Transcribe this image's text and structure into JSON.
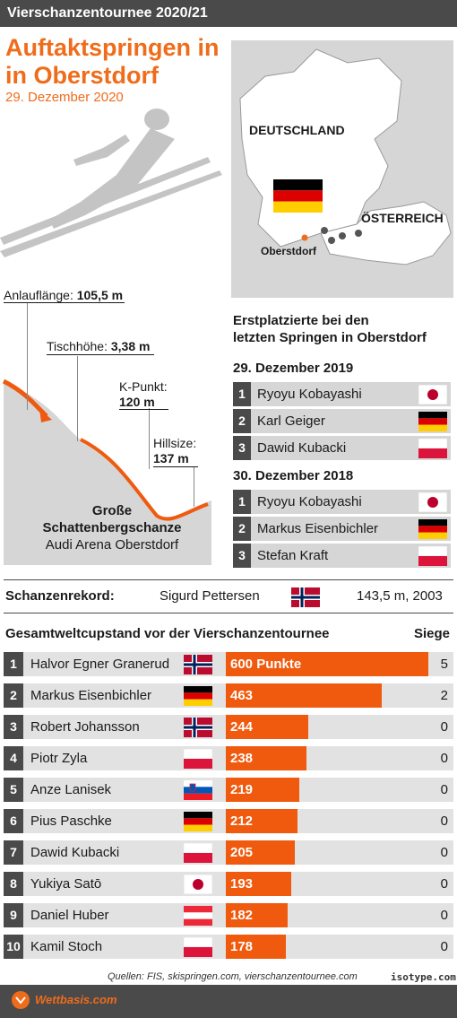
{
  "header": {
    "title": "Vierschanzentournee 2020/21"
  },
  "headline": {
    "line1": "Auftaktspringen in",
    "line2": "in Oberstdorf",
    "date": "29. Dezember 2020"
  },
  "map": {
    "country_de": "DEUTSCHLAND",
    "country_at": "ÖSTERREICH",
    "city": "Oberstdorf"
  },
  "hill": {
    "anlauf_label": "Anlauflänge:",
    "anlauf_value": "105,5 m",
    "tisch_label": "Tischhöhe:",
    "tisch_value": "3,38 m",
    "kpunkt_label": "K-Punkt:",
    "kpunkt_value": "120 m",
    "hillsize_label": "Hillsize:",
    "hillsize_value": "137 m",
    "name_line1": "Große",
    "name_line2": "Schattenbergschanze",
    "arena": "Audi Arena Oberstdorf"
  },
  "winners": {
    "title_line1": "Erstplatzierte bei den",
    "title_line2": "letzten Springen in Oberstdorf",
    "groups": [
      {
        "date": "29. Dezember 2019",
        "rows": [
          {
            "rank": "1",
            "name": "Ryoyu Kobayashi",
            "flag": "japan"
          },
          {
            "rank": "2",
            "name": "Karl Geiger",
            "flag": "germany"
          },
          {
            "rank": "3",
            "name": "Dawid Kubacki",
            "flag": "poland"
          }
        ]
      },
      {
        "date": "30. Dezember 2018",
        "rows": [
          {
            "rank": "1",
            "name": "Ryoyu Kobayashi",
            "flag": "japan"
          },
          {
            "rank": "2",
            "name": "Markus Eisenbichler",
            "flag": "germany"
          },
          {
            "rank": "3",
            "name": "Stefan Kraft",
            "flag": "poland"
          }
        ]
      }
    ]
  },
  "rekord": {
    "label": "Schanzenrekord:",
    "name": "Sigurd Pettersen",
    "flag": "norway",
    "value": "143,5 m, 2003"
  },
  "worldcup": {
    "title": "Gesamtweltcupstand vor der Vierschanzentournee",
    "siege_label": "Siege",
    "max_points": 600,
    "rows": [
      {
        "rank": "1",
        "name": "Halvor Egner Granerud",
        "flag": "norway",
        "points": 600,
        "points_label": "600 Punkte",
        "siege": "5"
      },
      {
        "rank": "2",
        "name": "Markus Eisenbichler",
        "flag": "germany",
        "points": 463,
        "points_label": "463",
        "siege": "2"
      },
      {
        "rank": "3",
        "name": "Robert Johansson",
        "flag": "norway",
        "points": 244,
        "points_label": "244",
        "siege": "0"
      },
      {
        "rank": "4",
        "name": "Piotr Zyla",
        "flag": "poland",
        "points": 238,
        "points_label": "238",
        "siege": "0"
      },
      {
        "rank": "5",
        "name": "Anze Lanisek",
        "flag": "slovenia",
        "points": 219,
        "points_label": "219",
        "siege": "0"
      },
      {
        "rank": "6",
        "name": "Pius Paschke",
        "flag": "germany",
        "points": 212,
        "points_label": "212",
        "siege": "0"
      },
      {
        "rank": "7",
        "name": "Dawid Kubacki",
        "flag": "poland",
        "points": 205,
        "points_label": "205",
        "siege": "0"
      },
      {
        "rank": "8",
        "name": "Yukiya Satō",
        "flag": "japan",
        "points": 193,
        "points_label": "193",
        "siege": "0"
      },
      {
        "rank": "9",
        "name": "Daniel Huber",
        "flag": "austria",
        "points": 182,
        "points_label": "182",
        "siege": "0"
      },
      {
        "rank": "10",
        "name": "Kamil Stoch",
        "flag": "poland",
        "points": 178,
        "points_label": "178",
        "siege": "0"
      }
    ]
  },
  "footer": {
    "sources": "Quellen: FIS, skispringen.com, vierschanzentournee.com",
    "credit": "isotype.com",
    "brand": "Wettbasis.com"
  }
}
